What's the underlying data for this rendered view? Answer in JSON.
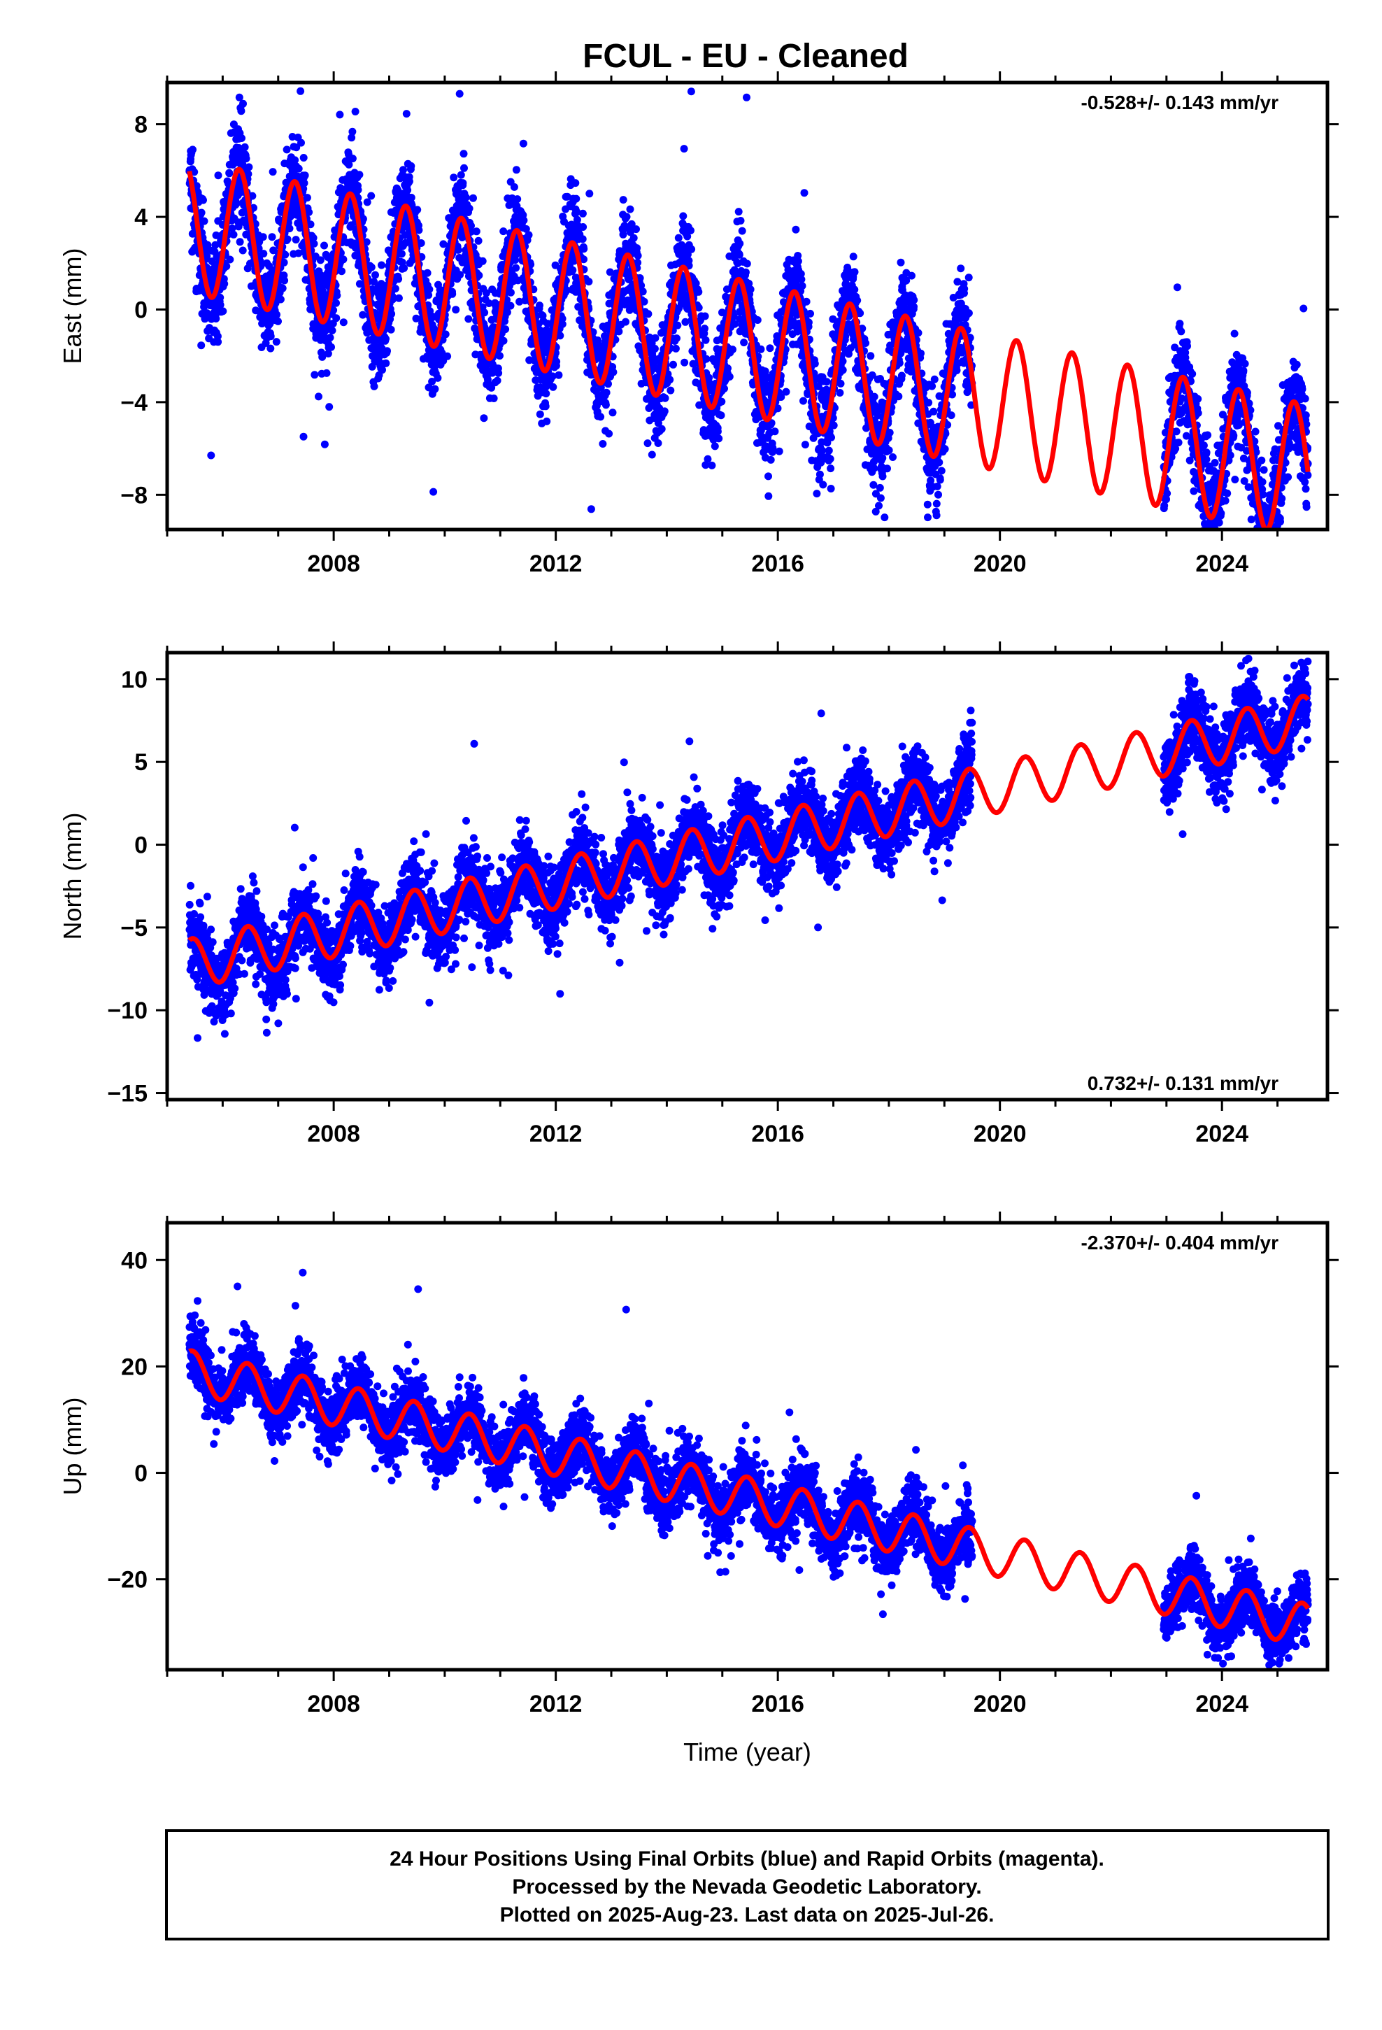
{
  "title": "FCUL  - EU - Cleaned",
  "colors": {
    "data": "#0000ff",
    "model": "#ff0000",
    "frame": "#000000"
  },
  "chart_data": [
    {
      "type": "scatter",
      "ylabel": "East (mm)",
      "xlabel": "",
      "rate": "-0.528+/- 0.143 mm/yr",
      "rate_position": "top-right",
      "xlim": [
        2005.0,
        2025.9
      ],
      "ylim": [
        -9.5,
        9.8
      ],
      "xticks": [
        2008,
        2012,
        2016,
        2020,
        2024
      ],
      "yticks": [
        -8,
        -4,
        0,
        4,
        8
      ],
      "ytick_labels": [
        "−8",
        "−4",
        "0",
        "4",
        "8"
      ],
      "model": {
        "name": "",
        "t0": 2005.4,
        "t1": 2025.55,
        "intercept_at_2005": 3.84,
        "slope": -0.528,
        "annual_amplitude": 2.9,
        "annual_peak_phase": 0.3,
        "wavy_growth": 0
      },
      "data_segments": [
        {
          "start": 2005.4,
          "end": 2019.5,
          "scatter_sd": 1.5
        },
        {
          "start": 2022.95,
          "end": 2025.55,
          "scatter_sd": 1.5
        }
      ]
    },
    {
      "type": "scatter",
      "ylabel": "North (mm)",
      "xlabel": "",
      "rate": "0.732+/- 0.131 mm/yr",
      "rate_position": "bottom-right",
      "xlim": [
        2005.0,
        2025.9
      ],
      "ylim": [
        -15.4,
        11.6
      ],
      "xticks": [
        2008,
        2012,
        2016,
        2020,
        2024
      ],
      "yticks": [
        -15,
        -10,
        -5,
        0,
        5,
        10
      ],
      "ytick_labels": [
        "−15",
        "−10",
        "−5",
        "0",
        "5",
        "10"
      ],
      "model": {
        "name": "",
        "t0": 2005.4,
        "t1": 2025.55,
        "intercept_at_2005": -7.5,
        "slope": 0.732,
        "annual_amplitude": 1.5,
        "annual_peak_phase": 0.45,
        "wavy_growth": 0
      },
      "data_segments": [
        {
          "start": 2005.4,
          "end": 2019.5,
          "scatter_sd": 1.5
        },
        {
          "start": 2022.95,
          "end": 2025.55,
          "scatter_sd": 1.4
        }
      ]
    },
    {
      "type": "scatter",
      "ylabel": "Up (mm)",
      "xlabel": "Time (year)",
      "rate": "-2.370+/- 0.404 mm/yr",
      "rate_position": "top-right",
      "xlim": [
        2005.0,
        2025.9
      ],
      "ylim": [
        -37,
        47
      ],
      "xticks": [
        2008,
        2012,
        2016,
        2020,
        2024
      ],
      "yticks": [
        -20,
        0,
        20,
        40
      ],
      "ytick_labels": [
        "−20",
        "0",
        "20",
        "40"
      ],
      "model": {
        "name": "",
        "t0": 2005.4,
        "t1": 2025.55,
        "intercept_at_2005": 20.0,
        "slope": -2.37,
        "annual_amplitude": 4.0,
        "annual_peak_phase": 0.45,
        "wavy_growth": 0
      },
      "data_segments": [
        {
          "start": 2005.4,
          "end": 2019.5,
          "scatter_sd": 4.0
        },
        {
          "start": 2022.95,
          "end": 2025.55,
          "scatter_sd": 3.8
        }
      ]
    }
  ],
  "footer": {
    "line1": "24 Hour Positions Using Final Orbits (blue) and Rapid Orbits (magenta).",
    "line2": "Processed by the Nevada Geodetic Laboratory.",
    "line3": "Plotted on 2025-Aug-23. Last data on 2025-Jul-26."
  }
}
